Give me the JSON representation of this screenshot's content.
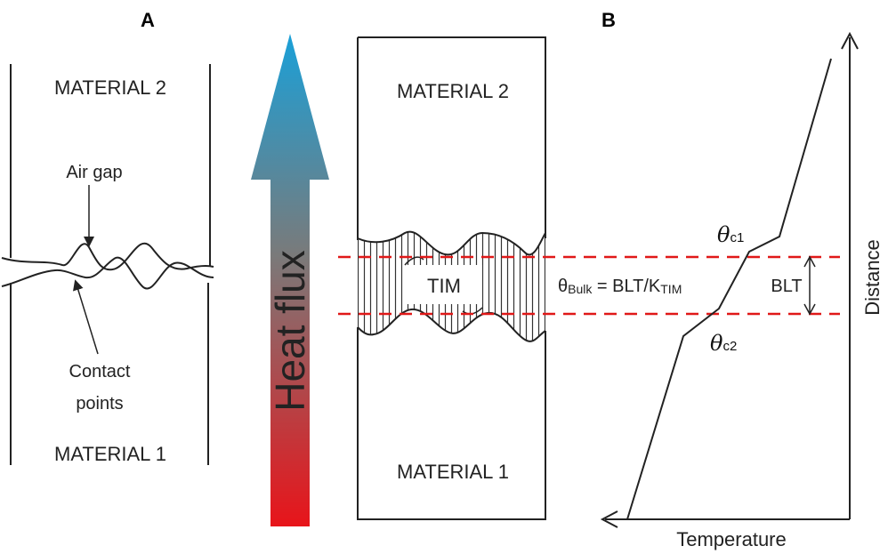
{
  "panel_a": {
    "label": "A",
    "material_top": "MATERIAL 2",
    "material_bottom": "MATERIAL 1",
    "air_gap": "Air gap",
    "contact_points_line1": "Contact",
    "contact_points_line2": "points"
  },
  "heat_arrow": {
    "label": "Heat flux",
    "color_top": "#1aa0d8",
    "color_mid": "#7a7a7a",
    "color_bottom": "#e8141a"
  },
  "tim_block": {
    "material_top": "MATERIAL 2",
    "material_bottom": "MATERIAL 1",
    "tim_label": "TIM",
    "equation": {
      "theta": "θ",
      "sub_bulk": "Bulk",
      "mid": " = BLT/K",
      "sub_tim": "TIM"
    },
    "dashed_color": "#e01818"
  },
  "panel_b": {
    "label": "B",
    "x_axis_label": "Temperature",
    "y_axis_label": "Distance",
    "blt_label": "BLT",
    "theta_c1": {
      "theta": "θ",
      "sub": "c1"
    },
    "theta_c2": {
      "theta": "θ",
      "sub": "c2"
    }
  }
}
